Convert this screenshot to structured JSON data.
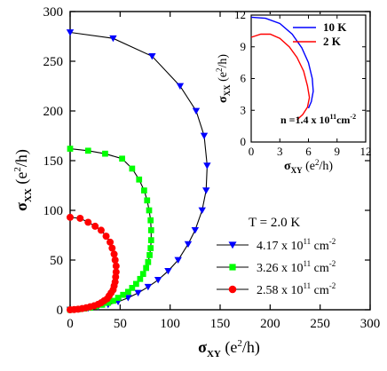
{
  "chart_data": [
    {
      "type": "scatter",
      "xlabel": "σ",
      "xlabel_sub": "XY",
      "xlabel_unit": " (e",
      "xlabel_unit_sup": "2",
      "xlabel_unit_end": "/h)",
      "ylabel": "σ",
      "ylabel_sub": "XX",
      "ylabel_unit": " (e",
      "ylabel_unit_sup": "2",
      "ylabel_unit_end": "/h)",
      "xlim": [
        0,
        300
      ],
      "ylim": [
        0,
        300
      ],
      "xticks": [
        0,
        50,
        100,
        150,
        200,
        250,
        300
      ],
      "yticks": [
        0,
        50,
        100,
        150,
        200,
        250,
        300
      ],
      "grid": false,
      "legend_position": "right",
      "legend_title": "T = 2.0 K",
      "series": [
        {
          "name": "4.17 x 10",
          "name_sup": "11",
          "name_unit": " cm",
          "name_unit_sup": "-2",
          "marker": "triangle-down",
          "color": "#0000ff",
          "points": [
            [
              0,
              279
            ],
            [
              43,
              273
            ],
            [
              82,
              255
            ],
            [
              110,
              225
            ],
            [
              126,
              200
            ],
            [
              134,
              175
            ],
            [
              137,
              145
            ],
            [
              136,
              120
            ],
            [
              132,
              100
            ],
            [
              125,
              80
            ],
            [
              118,
              66
            ],
            [
              108,
              50
            ],
            [
              98,
              39
            ],
            [
              88,
              30
            ],
            [
              78,
              23
            ],
            [
              68,
              17
            ],
            [
              58,
              12
            ],
            [
              48,
              8
            ],
            [
              38,
              5
            ],
            [
              28,
              3
            ],
            [
              18,
              1.5
            ],
            [
              8,
              0.5
            ],
            [
              0,
              0
            ]
          ]
        },
        {
          "name": "3.26 x 10",
          "name_sup": "11",
          "name_unit": " cm",
          "name_unit_sup": "-2",
          "marker": "square",
          "color": "#00ff00",
          "points": [
            [
              0,
              162
            ],
            [
              18,
              160
            ],
            [
              35,
              157
            ],
            [
              52,
              152
            ],
            [
              62,
              142
            ],
            [
              69,
              131
            ],
            [
              74,
              120
            ],
            [
              77,
              110
            ],
            [
              79,
              100
            ],
            [
              80.5,
              90
            ],
            [
              81,
              80
            ],
            [
              81,
              70
            ],
            [
              80.5,
              62
            ],
            [
              79.5,
              55
            ],
            [
              78,
              48
            ],
            [
              76,
              42
            ],
            [
              73,
              36
            ],
            [
              70,
              31
            ],
            [
              66,
              26
            ],
            [
              62,
              22
            ],
            [
              58,
              18
            ],
            [
              53,
              15
            ],
            [
              48,
              12
            ],
            [
              43,
              9
            ],
            [
              38,
              7
            ],
            [
              32,
              5
            ],
            [
              26,
              3.5
            ],
            [
              20,
              2
            ],
            [
              14,
              1.2
            ],
            [
              8,
              0.5
            ],
            [
              0,
              0
            ]
          ]
        },
        {
          "name": "2.58 x 10",
          "name_sup": "11",
          "name_unit": " cm",
          "name_unit_sup": "-2",
          "marker": "circle",
          "color": "#ff0000",
          "points": [
            [
              0,
              93
            ],
            [
              10,
              92
            ],
            [
              18,
              88
            ],
            [
              25,
              84
            ],
            [
              31,
              80
            ],
            [
              36,
              74
            ],
            [
              40,
              68
            ],
            [
              42,
              62
            ],
            [
              44,
              56
            ],
            [
              45,
              50
            ],
            [
              46,
              44
            ],
            [
              46,
              38
            ],
            [
              45.5,
              33
            ],
            [
              45,
              28
            ],
            [
              44,
              24
            ],
            [
              43,
              20
            ],
            [
              41,
              17
            ],
            [
              39,
              14
            ],
            [
              37,
              11
            ],
            [
              34,
              9
            ],
            [
              31,
              7
            ],
            [
              28,
              5.5
            ],
            [
              24,
              4
            ],
            [
              20,
              3
            ],
            [
              16,
              2
            ],
            [
              12,
              1.2
            ],
            [
              8,
              0.6
            ],
            [
              4,
              0.2
            ],
            [
              0,
              0
            ]
          ]
        }
      ]
    },
    {
      "type": "line",
      "xlabel": "σ",
      "xlabel_sub": "XY",
      "xlabel_unit": " (e",
      "xlabel_unit_sup": "2",
      "xlabel_unit_end": "/h)",
      "ylabel": "σ",
      "ylabel_sub": "XX",
      "ylabel_unit": " (e",
      "ylabel_unit_sup": "2",
      "ylabel_unit_end": "/h)",
      "xlim": [
        0,
        12
      ],
      "ylim": [
        0,
        12
      ],
      "xticks": [
        0,
        3,
        6,
        9,
        12
      ],
      "yticks": [
        0,
        3,
        6,
        9,
        12
      ],
      "grid": false,
      "legend_position": "top-right",
      "annotation": "n =1.4 x 10",
      "annotation_sup": "11",
      "annotation_unit": "cm",
      "annotation_unit_sup": "-2",
      "series": [
        {
          "name": "10 K",
          "color": "#0000ff",
          "points": [
            [
              0,
              11.8
            ],
            [
              1.5,
              11.7
            ],
            [
              3,
              11.2
            ],
            [
              4.3,
              10.2
            ],
            [
              5.3,
              8.9
            ],
            [
              6,
              7.5
            ],
            [
              6.4,
              6
            ],
            [
              6.5,
              4.8
            ],
            [
              6.3,
              3.8
            ],
            [
              6,
              3.2
            ]
          ]
        },
        {
          "name": "2 K",
          "color": "#ff0000",
          "points": [
            [
              0,
              9.9
            ],
            [
              1,
              10.2
            ],
            [
              2,
              10.2
            ],
            [
              3,
              9.8
            ],
            [
              4,
              9
            ],
            [
              4.8,
              8
            ],
            [
              5.5,
              6.7
            ],
            [
              5.9,
              5.3
            ],
            [
              6.1,
              4.2
            ],
            [
              5.9,
              3.3
            ],
            [
              5.4,
              2.6
            ],
            [
              4.8,
              2.1
            ]
          ]
        }
      ]
    }
  ]
}
